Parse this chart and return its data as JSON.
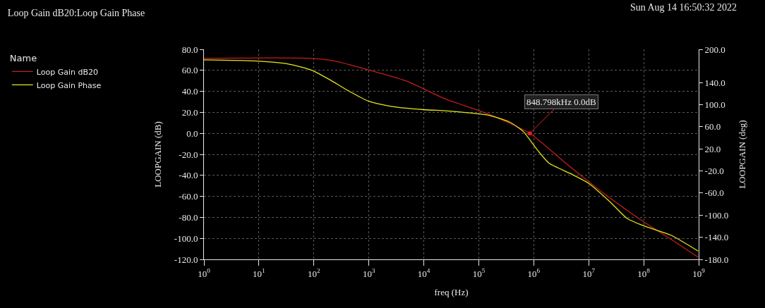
{
  "chart_data": {
    "type": "line",
    "title": "Loop Gain dB20:Loop Gain Phase",
    "subtitle": "Sun Aug 14 16:50:32 2022",
    "xlabel": "freq (Hz)",
    "ylabel": "LOOPGAIN (dB)",
    "y2label": "LOOPGAIN (deg)",
    "legend_title": "Name",
    "series": [
      {
        "name": "Loop Gain dB20",
        "color": "#c41e1e",
        "x": [
          1,
          80,
          234,
          760,
          4700,
          24000,
          42000,
          148000,
          848798,
          3550000,
          14000000,
          46000000,
          138000000,
          340000000,
          980000000
        ],
        "values": [
          71.5,
          71.5,
          69,
          62,
          50,
          33,
          28.5,
          18.5,
          0,
          -27,
          -52,
          -72,
          -89,
          -102,
          -118
        ]
      },
      {
        "name": "Loop Gain Phase",
        "color": "#e6e619",
        "axis": "y2",
        "x": [
          1,
          8.1,
          32,
          93,
          195,
          407,
          1000,
          2500,
          9800,
          24000,
          42000,
          148000,
          370000,
          650000,
          1100000,
          1900000,
          4700000,
          9800000,
          24500000,
          50000000,
          105000000,
          310000000,
          980000000
        ],
        "values": [
          181,
          179,
          174,
          162,
          145,
          126,
          106,
          97,
          91,
          89,
          87,
          81,
          68,
          51,
          21,
          -6,
          -25,
          -42,
          -76,
          -106,
          -120,
          -136,
          -165
        ]
      }
    ],
    "annotations": [
      {
        "text": "848.798kHz 0.0dB",
        "x": 848798,
        "y": 0
      }
    ],
    "log": "x",
    "xlim": [
      1,
      1000000000
    ],
    "xticks": [
      {
        "value": 1,
        "label": "10$^{0}$"
      },
      {
        "value": 10,
        "label": "10$^{1}$"
      },
      {
        "value": 100,
        "label": "10$^{2}$"
      },
      {
        "value": 1000,
        "label": "10$^{3}$"
      },
      {
        "value": 10000,
        "label": "10$^{4}$"
      },
      {
        "value": 100000,
        "label": "10$^{5}$"
      },
      {
        "value": 1000000,
        "label": "10$^{6}$"
      },
      {
        "value": 10000000,
        "label": "10$^{7}$"
      },
      {
        "value": 100000000,
        "label": "10$^{8}$"
      },
      {
        "value": 1000000000,
        "label": "10$^{9}$"
      }
    ],
    "ylim": [
      -120,
      80
    ],
    "yticks": [
      {
        "value": 80,
        "label": "80.0"
      },
      {
        "value": 60,
        "label": "60.0"
      },
      {
        "value": 40,
        "label": "40.0"
      },
      {
        "value": 20,
        "label": "20.0"
      },
      {
        "value": 0,
        "label": "0.0"
      },
      {
        "value": -20,
        "label": "-20.0"
      },
      {
        "value": -40,
        "label": "-40.0"
      },
      {
        "value": -60,
        "label": "-60.0"
      },
      {
        "value": -80,
        "label": "-80.0"
      },
      {
        "value": -100,
        "label": "-100.0"
      },
      {
        "value": -120,
        "label": "-120.0"
      }
    ],
    "y2lim": [
      -180,
      200
    ],
    "y2ticks": [
      {
        "value": 200,
        "label": "200.0"
      },
      {
        "value": 140,
        "label": "140.0"
      },
      {
        "value": 100,
        "label": "100.0"
      },
      {
        "value": 60,
        "label": "60.0"
      },
      {
        "value": 20,
        "label": "20.0"
      },
      {
        "value": -20,
        "label": "-20.0"
      },
      {
        "value": -60,
        "label": "-60.0"
      },
      {
        "value": -100,
        "label": "-100.0"
      },
      {
        "value": -140,
        "label": "-140.0"
      },
      {
        "value": -180,
        "label": "-180.0"
      }
    ],
    "grid": true,
    "legend": "left",
    "line_style": "solid"
  }
}
